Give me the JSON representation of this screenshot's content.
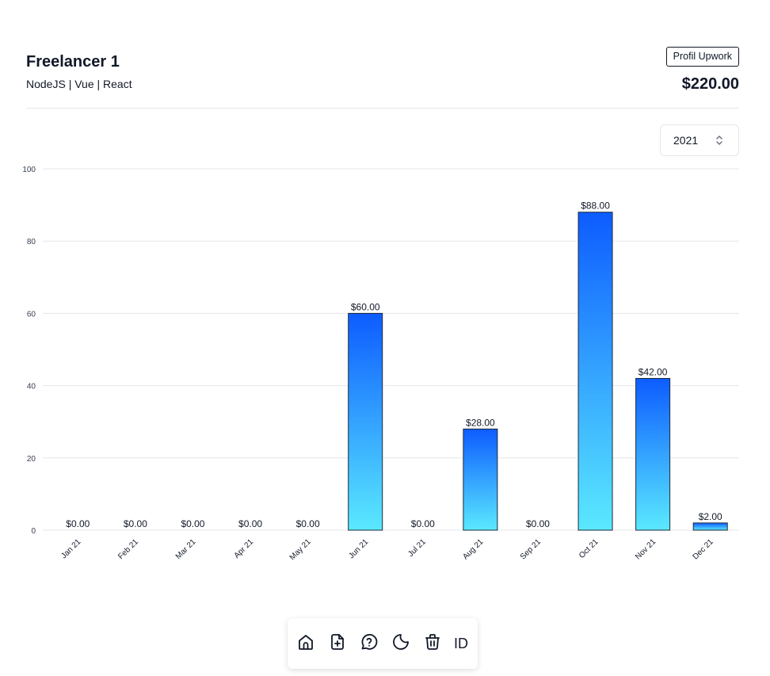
{
  "freelancer": {
    "name": "Freelancer 1",
    "skills": "NodeJS | Vue | React",
    "profile_button": "Profil Upwork",
    "total": "$220.00"
  },
  "year_select": {
    "value": "2021",
    "icon": "chevron-up-down-icon"
  },
  "toolbar": {
    "items": [
      {
        "icon": "home-icon"
      },
      {
        "icon": "file-plus-icon"
      },
      {
        "icon": "help-circle-icon"
      },
      {
        "icon": "moon-icon"
      },
      {
        "icon": "trash-icon"
      }
    ],
    "language_label": "ID"
  },
  "colors": {
    "bar_top": "#0d5cff",
    "bar_bottom": "#5ae9ff",
    "bar_border": "#1f2937",
    "grid": "#e5e7eb"
  },
  "chart_data": {
    "type": "bar",
    "categories": [
      "Jan 21",
      "Feb 21",
      "Mar 21",
      "Apr 21",
      "May 21",
      "Jun 21",
      "Jul 21",
      "Aug 21",
      "Sep 21",
      "Oct 21",
      "Nov 21",
      "Dec 21"
    ],
    "values": [
      0,
      0,
      0,
      0,
      0,
      60,
      0,
      28,
      0,
      88,
      42,
      2
    ],
    "data_labels": [
      "$0.00",
      "$0.00",
      "$0.00",
      "$0.00",
      "$0.00",
      "$60.00",
      "$0.00",
      "$28.00",
      "$0.00",
      "$88.00",
      "$42.00",
      "$2.00"
    ],
    "yticks": [
      0,
      20,
      40,
      60,
      80,
      100
    ],
    "ylim": [
      0,
      100
    ],
    "grid": true,
    "legend": "none",
    "title": "",
    "xlabel": "",
    "ylabel": ""
  }
}
